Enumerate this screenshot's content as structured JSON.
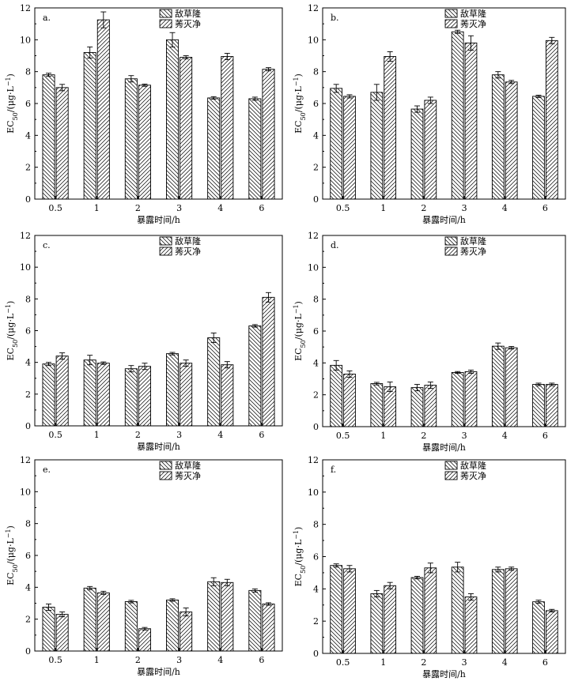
{
  "figure": {
    "series_names": [
      "敌草隆",
      "莠灭净"
    ],
    "xlabel": "暴露时间/h",
    "ylabel_main": "EC",
    "ylabel_sub": "50",
    "ylabel_unit": "/(μg·L",
    "ylabel_sup": "−1",
    "ylabel_close": ")"
  },
  "chart_data": [
    {
      "panel_label": "a.",
      "type": "bar",
      "categories": [
        "0.5",
        "1",
        "2",
        "3",
        "4",
        "6"
      ],
      "ylim": [
        0,
        12
      ],
      "yticks": [
        "0",
        "2",
        "4",
        "6",
        "8",
        "10",
        "12"
      ],
      "xlabel": "暴露时间/h",
      "series": [
        {
          "name": "敌草隆",
          "values": [
            7.8,
            9.2,
            7.55,
            10.0,
            6.35,
            6.3
          ],
          "errors": [
            0.1,
            0.35,
            0.2,
            0.45,
            0.08,
            0.1
          ]
        },
        {
          "name": "莠灭净",
          "values": [
            7.0,
            11.25,
            7.15,
            8.9,
            8.95,
            8.15
          ],
          "errors": [
            0.2,
            0.5,
            0.07,
            0.1,
            0.2,
            0.1
          ]
        }
      ]
    },
    {
      "panel_label": "b.",
      "type": "bar",
      "categories": [
        "0.5",
        "1",
        "2",
        "3",
        "4",
        "6"
      ],
      "ylim": [
        0,
        12
      ],
      "yticks": [
        "0",
        "2",
        "4",
        "6",
        "8",
        "10",
        "12"
      ],
      "xlabel": "暴露时间/h",
      "series": [
        {
          "name": "敌草隆",
          "values": [
            6.95,
            6.7,
            5.65,
            10.5,
            7.8,
            6.45
          ],
          "errors": [
            0.25,
            0.5,
            0.2,
            0.1,
            0.2,
            0.07
          ]
        },
        {
          "name": "莠灭净",
          "values": [
            6.45,
            8.95,
            6.2,
            9.8,
            7.35,
            9.95
          ],
          "errors": [
            0.1,
            0.3,
            0.2,
            0.45,
            0.1,
            0.2
          ]
        }
      ]
    },
    {
      "panel_label": "c.",
      "type": "bar",
      "categories": [
        "0.5",
        "1",
        "2",
        "3",
        "4",
        "6"
      ],
      "ylim": [
        0,
        12
      ],
      "yticks": [
        "0",
        "2",
        "4",
        "6",
        "8",
        "10",
        "12"
      ],
      "xlabel": "暴露时间/h",
      "series": [
        {
          "name": "敌草隆",
          "values": [
            3.9,
            4.15,
            3.6,
            4.55,
            5.55,
            6.3
          ],
          "errors": [
            0.1,
            0.3,
            0.2,
            0.08,
            0.3,
            0.08
          ]
        },
        {
          "name": "莠灭净",
          "values": [
            4.4,
            3.95,
            3.75,
            3.95,
            3.85,
            8.1
          ],
          "errors": [
            0.2,
            0.08,
            0.2,
            0.2,
            0.2,
            0.3
          ]
        }
      ]
    },
    {
      "panel_label": "d.",
      "type": "bar",
      "categories": [
        "0.5",
        "1",
        "2",
        "3",
        "4",
        "6"
      ],
      "ylim": [
        0,
        12
      ],
      "yticks": [
        "0",
        "2",
        "4",
        "6",
        "8",
        "10",
        "12"
      ],
      "xlabel": "暴露时间/h",
      "series": [
        {
          "name": "敌草隆",
          "values": [
            3.85,
            2.7,
            2.45,
            3.4,
            5.05,
            2.65
          ],
          "errors": [
            0.3,
            0.08,
            0.2,
            0.06,
            0.2,
            0.08
          ]
        },
        {
          "name": "莠灭净",
          "values": [
            3.3,
            2.5,
            2.6,
            3.45,
            4.95,
            2.65
          ],
          "errors": [
            0.2,
            0.3,
            0.2,
            0.1,
            0.08,
            0.08
          ]
        }
      ]
    },
    {
      "panel_label": "e.",
      "type": "bar",
      "categories": [
        "0.5",
        "1",
        "2",
        "3",
        "4",
        "6"
      ],
      "ylim": [
        0,
        12
      ],
      "yticks": [
        "0",
        "2",
        "4",
        "6",
        "8",
        "10",
        "12"
      ],
      "xlabel": "暴露时间/h",
      "series": [
        {
          "name": "敌草隆",
          "values": [
            2.75,
            3.95,
            3.1,
            3.2,
            4.35,
            3.8
          ],
          "errors": [
            0.2,
            0.1,
            0.08,
            0.08,
            0.25,
            0.1
          ]
        },
        {
          "name": "莠灭净",
          "values": [
            2.3,
            3.65,
            1.4,
            2.45,
            4.3,
            2.95
          ],
          "errors": [
            0.15,
            0.1,
            0.08,
            0.25,
            0.2,
            0.08
          ]
        }
      ]
    },
    {
      "panel_label": "f.",
      "type": "bar",
      "categories": [
        "0.5",
        "1",
        "2",
        "3",
        "4",
        "6"
      ],
      "ylim": [
        0,
        12
      ],
      "yticks": [
        "0",
        "2",
        "4",
        "6",
        "8",
        "10",
        "12"
      ],
      "xlabel": "暴露时间/h",
      "series": [
        {
          "name": "敌草隆",
          "values": [
            5.45,
            3.7,
            4.7,
            5.35,
            5.2,
            3.2
          ],
          "errors": [
            0.1,
            0.2,
            0.08,
            0.3,
            0.15,
            0.1
          ]
        },
        {
          "name": "莠灭净",
          "values": [
            5.25,
            4.2,
            5.3,
            3.5,
            5.25,
            2.65
          ],
          "errors": [
            0.2,
            0.2,
            0.3,
            0.2,
            0.1,
            0.08
          ]
        }
      ]
    }
  ]
}
